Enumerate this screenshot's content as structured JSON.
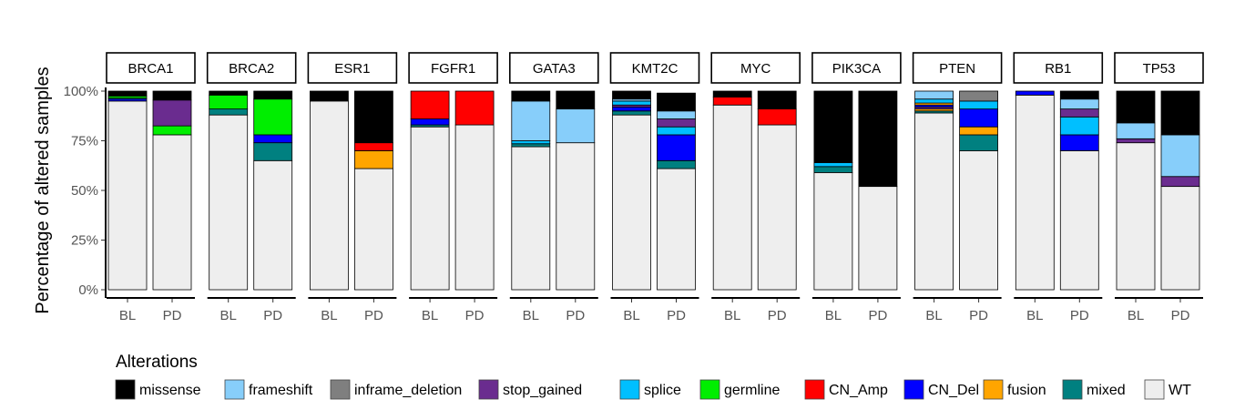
{
  "chart_data": {
    "type": "bar",
    "stacked": true,
    "facet_by": "gene",
    "ylabel": "Percentage of altered samples",
    "ylim": [
      0,
      100
    ],
    "y_ticks": [
      "0%",
      "25%",
      "50%",
      "75%",
      "100%"
    ],
    "y_tick_values": [
      0,
      25,
      50,
      75,
      100
    ],
    "categories": [
      "BL",
      "PD"
    ],
    "legend": {
      "title": "Alterations",
      "position": "bottom",
      "items": [
        {
          "name": "missense",
          "color": "#000000"
        },
        {
          "name": "frameshift",
          "color": "#87CEFA"
        },
        {
          "name": "inframe_deletion",
          "color": "#7F7F7F"
        },
        {
          "name": "stop_gained",
          "color": "#6A2C8F"
        },
        {
          "name": "splice",
          "color": "#00BFFF"
        },
        {
          "name": "germline",
          "color": "#00EE00"
        },
        {
          "name": "CN_Amp",
          "color": "#FF0000"
        },
        {
          "name": "CN_Del",
          "color": "#0000FF"
        },
        {
          "name": "fusion",
          "color": "#FFA500"
        },
        {
          "name": "mixed",
          "color": "#008080"
        },
        {
          "name": "WT",
          "color": "#EEEEEE"
        }
      ]
    },
    "facets": [
      {
        "gene": "BRCA1",
        "bars": [
          {
            "x": "BL",
            "segments": [
              [
                "WT",
                95
              ],
              [
                "CN_Del",
                1
              ],
              [
                "splice",
                0.5
              ],
              [
                "germline",
                1
              ],
              [
                "missense",
                2.5
              ]
            ]
          },
          {
            "x": "PD",
            "segments": [
              [
                "WT",
                78
              ],
              [
                "germline",
                4.5
              ],
              [
                "stop_gained",
                13
              ],
              [
                "missense",
                4.5
              ]
            ]
          }
        ]
      },
      {
        "gene": "BRCA2",
        "bars": [
          {
            "x": "BL",
            "segments": [
              [
                "WT",
                88
              ],
              [
                "mixed",
                3
              ],
              [
                "germline",
                7
              ],
              [
                "missense",
                2
              ]
            ]
          },
          {
            "x": "PD",
            "segments": [
              [
                "WT",
                65
              ],
              [
                "mixed",
                9
              ],
              [
                "CN_Del",
                4
              ],
              [
                "germline",
                18
              ],
              [
                "missense",
                4
              ]
            ]
          }
        ]
      },
      {
        "gene": "ESR1",
        "bars": [
          {
            "x": "BL",
            "segments": [
              [
                "WT",
                95
              ],
              [
                "missense",
                5
              ]
            ]
          },
          {
            "x": "PD",
            "segments": [
              [
                "WT",
                61
              ],
              [
                "fusion",
                9
              ],
              [
                "CN_Amp",
                4
              ],
              [
                "missense",
                26
              ]
            ]
          }
        ]
      },
      {
        "gene": "FGFR1",
        "bars": [
          {
            "x": "BL",
            "segments": [
              [
                "WT",
                82
              ],
              [
                "mixed",
                1
              ],
              [
                "CN_Del",
                3
              ],
              [
                "CN_Amp",
                14
              ]
            ]
          },
          {
            "x": "PD",
            "segments": [
              [
                "WT",
                83
              ],
              [
                "CN_Amp",
                17
              ]
            ]
          }
        ]
      },
      {
        "gene": "GATA3",
        "bars": [
          {
            "x": "BL",
            "segments": [
              [
                "WT",
                72
              ],
              [
                "mixed",
                1.5
              ],
              [
                "splice",
                1.5
              ],
              [
                "frameshift",
                20
              ],
              [
                "missense",
                5
              ]
            ]
          },
          {
            "x": "PD",
            "segments": [
              [
                "WT",
                74
              ],
              [
                "frameshift",
                17
              ],
              [
                "missense",
                9
              ]
            ]
          }
        ]
      },
      {
        "gene": "KMT2C",
        "bars": [
          {
            "x": "BL",
            "segments": [
              [
                "WT",
                88
              ],
              [
                "mixed",
                2
              ],
              [
                "CN_Del",
                2
              ],
              [
                "stop_gained",
                1
              ],
              [
                "splice",
                2
              ],
              [
                "frameshift",
                1
              ],
              [
                "missense",
                4
              ]
            ]
          },
          {
            "x": "PD",
            "segments": [
              [
                "WT",
                61
              ],
              [
                "mixed",
                4
              ],
              [
                "CN_Del",
                13
              ],
              [
                "splice",
                4
              ],
              [
                "stop_gained",
                4
              ],
              [
                "frameshift",
                4
              ],
              [
                "missense",
                9
              ]
            ]
          }
        ]
      },
      {
        "gene": "MYC",
        "bars": [
          {
            "x": "BL",
            "segments": [
              [
                "WT",
                93
              ],
              [
                "CN_Amp",
                4
              ],
              [
                "missense",
                3
              ]
            ]
          },
          {
            "x": "PD",
            "segments": [
              [
                "WT",
                83
              ],
              [
                "CN_Amp",
                8
              ],
              [
                "missense",
                9
              ]
            ]
          }
        ]
      },
      {
        "gene": "PIK3CA",
        "bars": [
          {
            "x": "BL",
            "segments": [
              [
                "WT",
                59
              ],
              [
                "mixed",
                3
              ],
              [
                "splice",
                2
              ],
              [
                "missense",
                36
              ]
            ]
          },
          {
            "x": "PD",
            "segments": [
              [
                "WT",
                52
              ],
              [
                "missense",
                48
              ]
            ]
          }
        ]
      },
      {
        "gene": "PTEN",
        "bars": [
          {
            "x": "BL",
            "segments": [
              [
                "WT",
                89
              ],
              [
                "mixed",
                1
              ],
              [
                "fusion",
                1
              ],
              [
                "stop_gained",
                1
              ],
              [
                "CN_Del",
                1
              ],
              [
                "fusion",
                1
              ],
              [
                "splice",
                2
              ],
              [
                "frameshift",
                4
              ]
            ]
          },
          {
            "x": "PD",
            "segments": [
              [
                "WT",
                70
              ],
              [
                "mixed",
                8
              ],
              [
                "fusion",
                4
              ],
              [
                "CN_Del",
                9
              ],
              [
                "splice",
                4
              ],
              [
                "inframe_deletion",
                5
              ]
            ]
          }
        ]
      },
      {
        "gene": "RB1",
        "bars": [
          {
            "x": "BL",
            "segments": [
              [
                "WT",
                98
              ],
              [
                "CN_Del",
                2
              ]
            ]
          },
          {
            "x": "PD",
            "segments": [
              [
                "WT",
                70
              ],
              [
                "CN_Del",
                8
              ],
              [
                "splice",
                9
              ],
              [
                "stop_gained",
                4
              ],
              [
                "frameshift",
                5
              ],
              [
                "missense",
                4
              ]
            ]
          }
        ]
      },
      {
        "gene": "TP53",
        "bars": [
          {
            "x": "BL",
            "segments": [
              [
                "WT",
                74
              ],
              [
                "stop_gained",
                2
              ],
              [
                "frameshift",
                8
              ],
              [
                "missense",
                16
              ]
            ]
          },
          {
            "x": "PD",
            "segments": [
              [
                "WT",
                52
              ],
              [
                "stop_gained",
                5
              ],
              [
                "frameshift",
                21
              ],
              [
                "missense",
                22
              ]
            ]
          }
        ]
      }
    ]
  }
}
